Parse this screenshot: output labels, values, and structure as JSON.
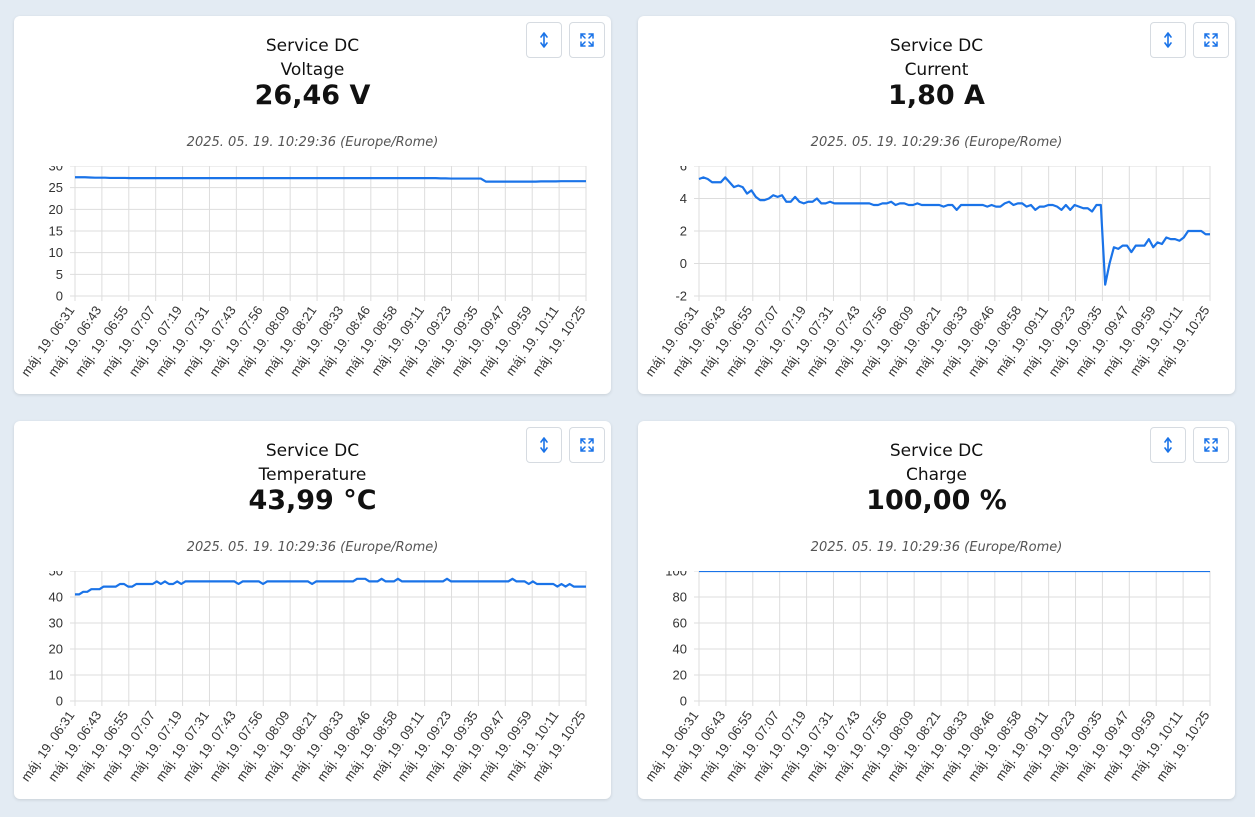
{
  "timestamp": "2025. 05. 19. 10:29:36 (Europe/Rome)",
  "x_labels": [
    "máj. 19. 06:31",
    "máj. 19. 06:43",
    "máj. 19. 06:55",
    "máj. 19. 07:07",
    "máj. 19. 07:19",
    "máj. 19. 07:31",
    "máj. 19. 07:43",
    "máj. 19. 07:56",
    "máj. 19. 08:09",
    "máj. 19. 08:21",
    "máj. 19. 08:33",
    "máj. 19. 08:46",
    "máj. 19. 08:58",
    "máj. 19. 09:11",
    "máj. 19. 09:23",
    "máj. 19. 09:35",
    "máj. 19. 09:47",
    "máj. 19. 09:59",
    "máj. 19. 10:11",
    "máj. 19. 10:25"
  ],
  "accent_color": "#1a73e8",
  "buttons": {
    "sort_icon": "sort-vertical-icon",
    "expand_icon": "expand-icon"
  },
  "cards": [
    {
      "title_line1": "Service DC",
      "title_line2": "Voltage",
      "value": "26,46 V",
      "chart_data": {
        "type": "line",
        "ylim": [
          0,
          30
        ],
        "yticks": [
          "0",
          "5",
          "10",
          "15",
          "20",
          "25",
          "30"
        ],
        "series": [
          {
            "values": [
              27.4,
              27.4,
              27.4,
              27.35,
              27.3,
              27.3,
              27.3,
              27.25,
              27.25,
              27.25,
              27.25,
              27.2,
              27.2,
              27.2,
              27.2,
              27.2,
              27.2,
              27.2,
              27.2,
              27.2,
              27.2,
              27.2,
              27.2,
              27.2,
              27.2,
              27.2,
              27.2,
              27.2,
              27.2,
              27.2,
              27.2,
              27.2,
              27.2,
              27.2,
              27.2,
              27.2,
              27.2,
              27.2,
              27.2,
              27.2,
              27.2,
              27.2,
              27.2,
              27.2,
              27.2,
              27.2,
              27.2,
              27.2,
              27.2,
              27.2,
              27.2,
              27.2,
              27.2,
              27.2,
              27.2,
              27.2,
              27.2,
              27.2,
              27.2,
              27.2,
              27.2,
              27.2,
              27.2,
              27.2,
              27.2,
              27.2,
              27.2,
              27.2,
              27.2,
              27.2,
              27.2,
              27.2,
              27.2,
              27.15,
              27.15,
              27.1,
              27.1,
              27.1,
              27.1,
              27.1,
              27.1,
              27.1,
              26.4,
              26.4,
              26.4,
              26.4,
              26.4,
              26.4,
              26.4,
              26.4,
              26.4,
              26.4,
              26.4,
              26.45,
              26.45,
              26.45,
              26.45,
              26.5,
              26.5,
              26.5,
              26.5,
              26.5,
              26.5
            ]
          }
        ]
      }
    },
    {
      "title_line1": "Service DC",
      "title_line2": "Current",
      "value": "1,80 A",
      "chart_data": {
        "type": "line",
        "ylim": [
          -2,
          6
        ],
        "yticks": [
          "-2",
          "0",
          "2",
          "4",
          "6"
        ],
        "series": [
          {
            "values": [
              5.2,
              5.3,
              5.2,
              5.0,
              5.0,
              5.0,
              5.3,
              5.0,
              4.7,
              4.8,
              4.7,
              4.3,
              4.5,
              4.1,
              3.9,
              3.9,
              4.0,
              4.2,
              4.1,
              4.2,
              3.8,
              3.8,
              4.1,
              3.8,
              3.7,
              3.8,
              3.8,
              4.0,
              3.7,
              3.7,
              3.8,
              3.7,
              3.7,
              3.7,
              3.7,
              3.7,
              3.7,
              3.7,
              3.7,
              3.7,
              3.6,
              3.6,
              3.7,
              3.7,
              3.8,
              3.6,
              3.7,
              3.7,
              3.6,
              3.6,
              3.7,
              3.6,
              3.6,
              3.6,
              3.6,
              3.6,
              3.5,
              3.6,
              3.6,
              3.3,
              3.6,
              3.6,
              3.6,
              3.6,
              3.6,
              3.6,
              3.5,
              3.6,
              3.5,
              3.5,
              3.7,
              3.8,
              3.6,
              3.7,
              3.7,
              3.5,
              3.6,
              3.3,
              3.5,
              3.5,
              3.6,
              3.6,
              3.5,
              3.3,
              3.6,
              3.3,
              3.6,
              3.5,
              3.4,
              3.4,
              3.2,
              3.6,
              3.6,
              -1.3,
              0.0,
              1.0,
              0.9,
              1.1,
              1.1,
              0.7,
              1.1,
              1.1,
              1.1,
              1.5,
              1.0,
              1.3,
              1.2,
              1.6,
              1.5,
              1.5,
              1.4,
              1.6,
              2.0,
              2.0,
              2.0,
              2.0,
              1.8,
              1.8
            ]
          }
        ]
      }
    },
    {
      "title_line1": "Service DC",
      "title_line2": "Temperature",
      "value": "43,99 °C",
      "chart_data": {
        "type": "line",
        "ylim": [
          0,
          50
        ],
        "yticks": [
          "0",
          "10",
          "20",
          "30",
          "40",
          "50"
        ],
        "series": [
          {
            "values": [
              41,
              41,
              42,
              42,
              43,
              43,
              43,
              44,
              44,
              44,
              44,
              45,
              45,
              44,
              44,
              45,
              45,
              45,
              45,
              45,
              46,
              45,
              46,
              45,
              45,
              46,
              45,
              46,
              46,
              46,
              46,
              46,
              46,
              46,
              46,
              46,
              46,
              46,
              46,
              46,
              45,
              46,
              46,
              46,
              46,
              46,
              45,
              46,
              46,
              46,
              46,
              46,
              46,
              46,
              46,
              46,
              46,
              46,
              45,
              46,
              46,
              46,
              46,
              46,
              46,
              46,
              46,
              46,
              46,
              47,
              47,
              47,
              46,
              46,
              46,
              47,
              46,
              46,
              46,
              47,
              46,
              46,
              46,
              46,
              46,
              46,
              46,
              46,
              46,
              46,
              46,
              47,
              46,
              46,
              46,
              46,
              46,
              46,
              46,
              46,
              46,
              46,
              46,
              46,
              46,
              46,
              46,
              47,
              46,
              46,
              46,
              45,
              46,
              45,
              45,
              45,
              45,
              45,
              44,
              45,
              44,
              45,
              44,
              44,
              44,
              44
            ]
          }
        ]
      }
    },
    {
      "title_line1": "Service DC",
      "title_line2": "Charge",
      "value": "100,00 %",
      "chart_data": {
        "type": "line",
        "ylim": [
          0,
          100
        ],
        "yticks": [
          "0",
          "20",
          "40",
          "60",
          "80",
          "100"
        ],
        "series": [
          {
            "values": [
              100,
              100,
              100,
              100,
              100,
              100,
              100,
              100,
              100,
              100,
              100,
              100,
              100,
              100,
              100,
              100,
              100,
              100,
              100,
              100
            ]
          }
        ]
      }
    }
  ]
}
